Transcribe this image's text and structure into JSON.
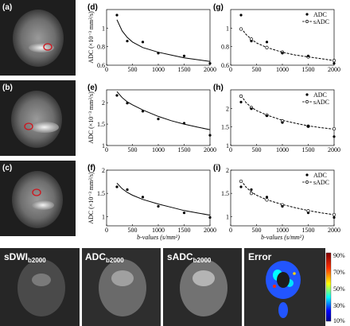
{
  "panel_labels": {
    "a": "(a)",
    "b": "(b)",
    "c": "(c)",
    "d": "(d)",
    "e": "(e)",
    "f": "(f)",
    "g": "(g)",
    "h": "(h)",
    "i": "(i)"
  },
  "image_labels": {
    "sdwi_main": "sDWI",
    "sdwi_sub": "b2000",
    "adc_main": "ADC",
    "adc_sub": "b2000",
    "sadc_main": "sADC",
    "sadc_sub": "b2000",
    "error": "Error"
  },
  "colorbar_ticks": [
    "90%",
    "70%",
    "50%",
    "30%",
    "10%"
  ],
  "colors": {
    "points": "#000000",
    "line": "#000000",
    "roi": "#d1121b"
  },
  "chart_data": [
    {
      "id": "d",
      "type": "scatter",
      "xlim": [
        0,
        2000
      ],
      "ylim": [
        0.6,
        1.2
      ],
      "xticks": [
        0,
        500,
        1000,
        1500,
        2000
      ],
      "yticks": [
        0.6,
        0.8,
        1
      ],
      "ylabel": "ADC (×10⁻³ mm²/s)",
      "xlabel": "",
      "points_x": [
        200,
        400,
        700,
        1000,
        1500,
        2000
      ],
      "points_y": [
        1.14,
        0.86,
        0.85,
        0.73,
        0.7,
        0.62
      ],
      "fit_x": [
        200,
        300,
        400,
        500,
        700,
        1000,
        1250,
        1500,
        1750,
        2000
      ],
      "fit_y": [
        1.09,
        0.97,
        0.9,
        0.85,
        0.79,
        0.74,
        0.71,
        0.68,
        0.66,
        0.64
      ]
    },
    {
      "id": "e",
      "type": "scatter",
      "xlim": [
        0,
        2000
      ],
      "ylim": [
        1,
        2.3
      ],
      "xticks": [
        0,
        500,
        1000,
        1500,
        2000
      ],
      "yticks": [
        1,
        1.5,
        2
      ],
      "ylabel": "ADC (×10⁻³ mm²/s)",
      "xlabel": "",
      "points_x": [
        200,
        400,
        700,
        1000,
        1500,
        2000
      ],
      "points_y": [
        2.17,
        1.99,
        1.8,
        1.62,
        1.52,
        1.24
      ],
      "fit_x": [
        200,
        300,
        400,
        500,
        700,
        1000,
        1250,
        1500,
        1750,
        2000
      ],
      "fit_y": [
        2.26,
        2.12,
        2.02,
        1.95,
        1.83,
        1.68,
        1.58,
        1.5,
        1.43,
        1.37
      ]
    },
    {
      "id": "f",
      "type": "scatter",
      "xlim": [
        0,
        2000
      ],
      "ylim": [
        0.8,
        2
      ],
      "xticks": [
        0,
        500,
        1000,
        1500,
        2000
      ],
      "yticks": [
        1,
        1.5,
        2
      ],
      "ylabel": "ADC (×10⁻³ mm²/s)",
      "xlabel": "b-values (s/mm²)",
      "points_x": [
        200,
        400,
        700,
        1000,
        1500,
        2000
      ],
      "points_y": [
        1.64,
        1.58,
        1.42,
        1.22,
        1.08,
        0.98
      ],
      "fit_x": [
        200,
        300,
        400,
        500,
        700,
        1000,
        1250,
        1500,
        1750,
        2000
      ],
      "fit_y": [
        1.72,
        1.6,
        1.52,
        1.46,
        1.37,
        1.27,
        1.2,
        1.13,
        1.08,
        1.03
      ]
    },
    {
      "id": "g",
      "type": "scatter",
      "xlim": [
        0,
        2000
      ],
      "ylim": [
        0.6,
        1.2
      ],
      "xticks": [
        0,
        500,
        1000,
        1500,
        2000
      ],
      "yticks": [
        0.6,
        0.8,
        1
      ],
      "ylabel": "",
      "xlabel": "",
      "legend": [
        "ADC",
        "sADC"
      ],
      "legend_position": "top-right",
      "points_x": [
        200,
        400,
        700,
        1000,
        1500,
        2000
      ],
      "points_y": [
        1.14,
        0.86,
        0.85,
        0.73,
        0.7,
        0.62
      ],
      "sadc_x": [
        200,
        400,
        700,
        1000,
        1500,
        2000
      ],
      "sadc_y": [
        0.99,
        0.88,
        0.79,
        0.74,
        0.69,
        0.65
      ],
      "fit_x": [
        200,
        300,
        400,
        500,
        700,
        1000,
        1250,
        1500,
        1750,
        2000
      ],
      "fit_y": [
        1.0,
        0.93,
        0.88,
        0.84,
        0.79,
        0.74,
        0.71,
        0.69,
        0.67,
        0.65
      ]
    },
    {
      "id": "h",
      "type": "scatter",
      "xlim": [
        0,
        2000
      ],
      "ylim": [
        1,
        2.5
      ],
      "xticks": [
        0,
        500,
        1000,
        1500,
        2000
      ],
      "yticks": [
        1,
        1.5,
        2
      ],
      "ylabel": "",
      "xlabel": "",
      "legend": [
        "ADC",
        "sADC"
      ],
      "legend_position": "top-right",
      "points_x": [
        200,
        400,
        700,
        1000,
        1500,
        2000
      ],
      "points_y": [
        2.17,
        1.99,
        1.8,
        1.62,
        1.52,
        1.24
      ],
      "sadc_x": [
        200,
        400,
        700,
        1000,
        1500,
        2000
      ],
      "sadc_y": [
        2.33,
        2.02,
        1.82,
        1.66,
        1.52,
        1.45
      ],
      "fit_x": [
        200,
        300,
        400,
        500,
        700,
        1000,
        1250,
        1500,
        1750,
        2000
      ],
      "fit_y": [
        2.35,
        2.15,
        2.03,
        1.94,
        1.82,
        1.68,
        1.6,
        1.53,
        1.48,
        1.44
      ]
    },
    {
      "id": "i",
      "type": "scatter",
      "xlim": [
        0,
        2000
      ],
      "ylim": [
        0.8,
        2
      ],
      "xticks": [
        0,
        500,
        1000,
        1500,
        2000
      ],
      "yticks": [
        1,
        1.5,
        2
      ],
      "ylabel": "",
      "xlabel": "b-values (s/mm²)",
      "legend": [
        "ADC",
        "sADC"
      ],
      "legend_position": "top-right",
      "points_x": [
        200,
        400,
        700,
        1000,
        1500,
        2000
      ],
      "points_y": [
        1.64,
        1.58,
        1.42,
        1.22,
        1.08,
        0.98
      ],
      "sadc_x": [
        200,
        400,
        700,
        1000,
        1500,
        2000
      ],
      "sadc_y": [
        1.76,
        1.5,
        1.36,
        1.25,
        1.12,
        1.04
      ],
      "fit_x": [
        200,
        300,
        400,
        500,
        700,
        1000,
        1250,
        1500,
        1750,
        2000
      ],
      "fit_y": [
        1.78,
        1.63,
        1.53,
        1.46,
        1.36,
        1.26,
        1.19,
        1.13,
        1.08,
        1.04
      ]
    }
  ]
}
